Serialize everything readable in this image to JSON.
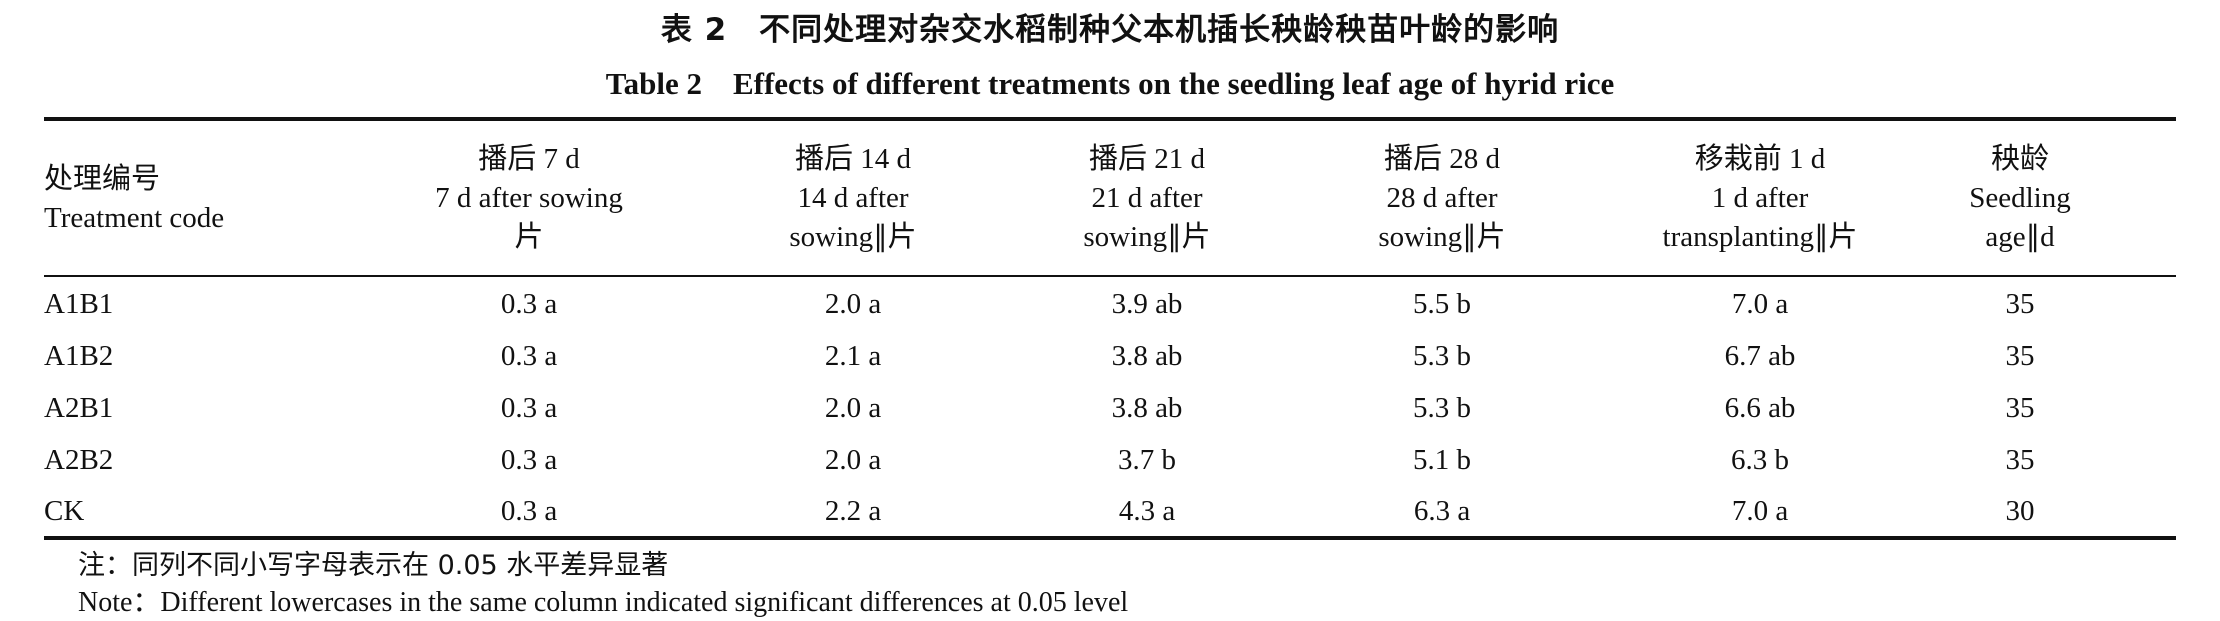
{
  "caption": {
    "cn": "表 2　不同处理对杂交水稻制种父本机插长秧龄秧苗叶龄的影响",
    "en": "Table 2　Effects of different treatments on the seedling leaf age of hyrid rice"
  },
  "table": {
    "columns": [
      {
        "lines": [
          "处理编号",
          "Treatment code"
        ]
      },
      {
        "lines": [
          "播后 7 d",
          "7 d after sowing",
          "片"
        ]
      },
      {
        "lines": [
          "播后 14 d",
          "14 d after",
          "sowing∥片"
        ]
      },
      {
        "lines": [
          "播后 21 d",
          "21 d after",
          "sowing∥片"
        ]
      },
      {
        "lines": [
          "播后 28 d",
          "28 d after",
          "sowing∥片"
        ]
      },
      {
        "lines": [
          "移栽前 1 d",
          "1 d after",
          "transplanting∥片"
        ]
      },
      {
        "lines": [
          "秧龄",
          "Seedling",
          "age∥d"
        ]
      }
    ],
    "rows": [
      [
        "A1B1",
        "0.3 a",
        "2.0 a",
        "3.9 ab",
        "5.5 b",
        "7.0 a",
        "35"
      ],
      [
        "A1B2",
        "0.3 a",
        "2.1 a",
        "3.8 ab",
        "5.3 b",
        "6.7 ab",
        "35"
      ],
      [
        "A2B1",
        "0.3 a",
        "2.0 a",
        "3.8 ab",
        "5.3 b",
        "6.6 ab",
        "35"
      ],
      [
        "A2B2",
        "0.3 a",
        "2.0 a",
        "3.7 b",
        "5.1 b",
        "6.3 b",
        "35"
      ],
      [
        "CK",
        "0.3 a",
        "2.2 a",
        "4.3 a",
        "6.3 a",
        "7.0 a",
        "30"
      ]
    ]
  },
  "notes": {
    "cn": "注：同列不同小写字母表示在 0.05 水平差异显著",
    "en": "Note：Different lowercases in the same column indicated significant differences at 0.05 level"
  }
}
